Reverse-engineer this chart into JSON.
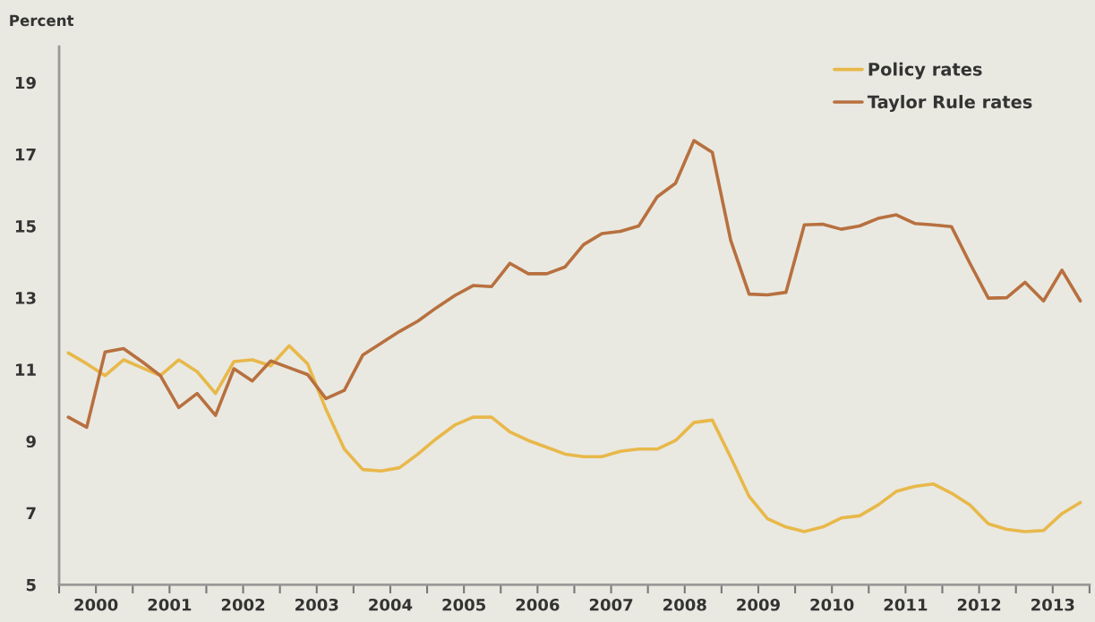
{
  "chart_data": {
    "type": "line",
    "ylabel": "Percent",
    "x": [
      2000.125,
      2000.375,
      2000.625,
      2000.875,
      2001.125,
      2001.375,
      2001.625,
      2001.875,
      2002.125,
      2002.375,
      2002.625,
      2002.875,
      2003.125,
      2003.375,
      2003.625,
      2003.875,
      2004.125,
      2004.375,
      2004.625,
      2004.875,
      2005.125,
      2005.375,
      2005.625,
      2005.875,
      2006.125,
      2006.375,
      2006.625,
      2006.875,
      2007.125,
      2007.375,
      2007.625,
      2007.875,
      2008.125,
      2008.375,
      2008.625,
      2008.875,
      2009.125,
      2009.375,
      2009.625,
      2009.875,
      2010.125,
      2010.375,
      2010.625,
      2010.875,
      2011.125,
      2011.375,
      2011.625,
      2011.875,
      2012.125,
      2012.375,
      2012.625,
      2012.875,
      2013.125,
      2013.375,
      2013.625,
      2013.875
    ],
    "series": [
      {
        "name": "Policy rates",
        "color": "#e8b84a",
        "values": [
          11.46,
          11.16,
          10.83,
          11.27,
          11.05,
          10.83,
          11.27,
          10.94,
          10.33,
          11.22,
          11.27,
          11.1,
          11.66,
          11.16,
          9.89,
          8.78,
          8.21,
          8.17,
          8.26,
          8.64,
          9.07,
          9.45,
          9.67,
          9.67,
          9.26,
          9.02,
          8.83,
          8.64,
          8.57,
          8.57,
          8.72,
          8.78,
          8.78,
          9.02,
          9.52,
          9.59,
          8.55,
          7.46,
          6.84,
          6.61,
          6.48,
          6.61,
          6.86,
          6.92,
          7.22,
          7.6,
          7.74,
          7.81,
          7.55,
          7.22,
          6.7,
          6.54,
          6.48,
          6.51,
          6.98,
          7.29
        ]
      },
      {
        "name": "Taylor Rule rates",
        "color": "#b8703f",
        "values": [
          9.67,
          9.39,
          11.49,
          11.58,
          11.22,
          10.83,
          9.94,
          10.33,
          9.72,
          11.02,
          10.68,
          11.24,
          11.05,
          10.86,
          10.19,
          10.42,
          11.4,
          11.73,
          12.06,
          12.35,
          12.72,
          13.06,
          13.34,
          13.31,
          13.96,
          13.67,
          13.67,
          13.86,
          14.48,
          14.79,
          14.85,
          15.0,
          15.81,
          16.19,
          17.38,
          17.05,
          14.6,
          13.1,
          13.08,
          13.15,
          15.03,
          15.05,
          14.91,
          15.0,
          15.21,
          15.31,
          15.07,
          15.03,
          14.98,
          13.96,
          12.99,
          13.0,
          13.43,
          12.91,
          13.77,
          12.91
        ]
      }
    ],
    "xlim": [
      2000,
      2014
    ],
    "xticks": [
      {
        "value": 2000,
        "label": null
      },
      {
        "value": 2000.5,
        "label": "2000"
      },
      {
        "value": 2001,
        "label": null
      },
      {
        "value": 2001.5,
        "label": "2001"
      },
      {
        "value": 2002,
        "label": null
      },
      {
        "value": 2002.5,
        "label": "2002"
      },
      {
        "value": 2003,
        "label": null
      },
      {
        "value": 2003.5,
        "label": "2003"
      },
      {
        "value": 2004,
        "label": null
      },
      {
        "value": 2004.5,
        "label": "2004"
      },
      {
        "value": 2005,
        "label": null
      },
      {
        "value": 2005.5,
        "label": "2005"
      },
      {
        "value": 2006,
        "label": null
      },
      {
        "value": 2006.5,
        "label": "2006"
      },
      {
        "value": 2007,
        "label": null
      },
      {
        "value": 2007.5,
        "label": "2007"
      },
      {
        "value": 2008,
        "label": null
      },
      {
        "value": 2008.5,
        "label": "2008"
      },
      {
        "value": 2009,
        "label": null
      },
      {
        "value": 2009.5,
        "label": "2009"
      },
      {
        "value": 2010,
        "label": null
      },
      {
        "value": 2010.5,
        "label": "2010"
      },
      {
        "value": 2011,
        "label": null
      },
      {
        "value": 2011.5,
        "label": "2011"
      },
      {
        "value": 2012,
        "label": null
      },
      {
        "value": 2012.5,
        "label": "2012"
      },
      {
        "value": 2013,
        "label": null
      },
      {
        "value": 2013.5,
        "label": "2013"
      },
      {
        "value": 2014,
        "label": null
      }
    ],
    "ylim": [
      5,
      20
    ],
    "yticks": [
      5,
      7,
      9,
      11,
      13,
      15,
      17,
      19
    ],
    "grid": false,
    "legend": "top right",
    "marker": "none",
    "line_style": "solid"
  }
}
